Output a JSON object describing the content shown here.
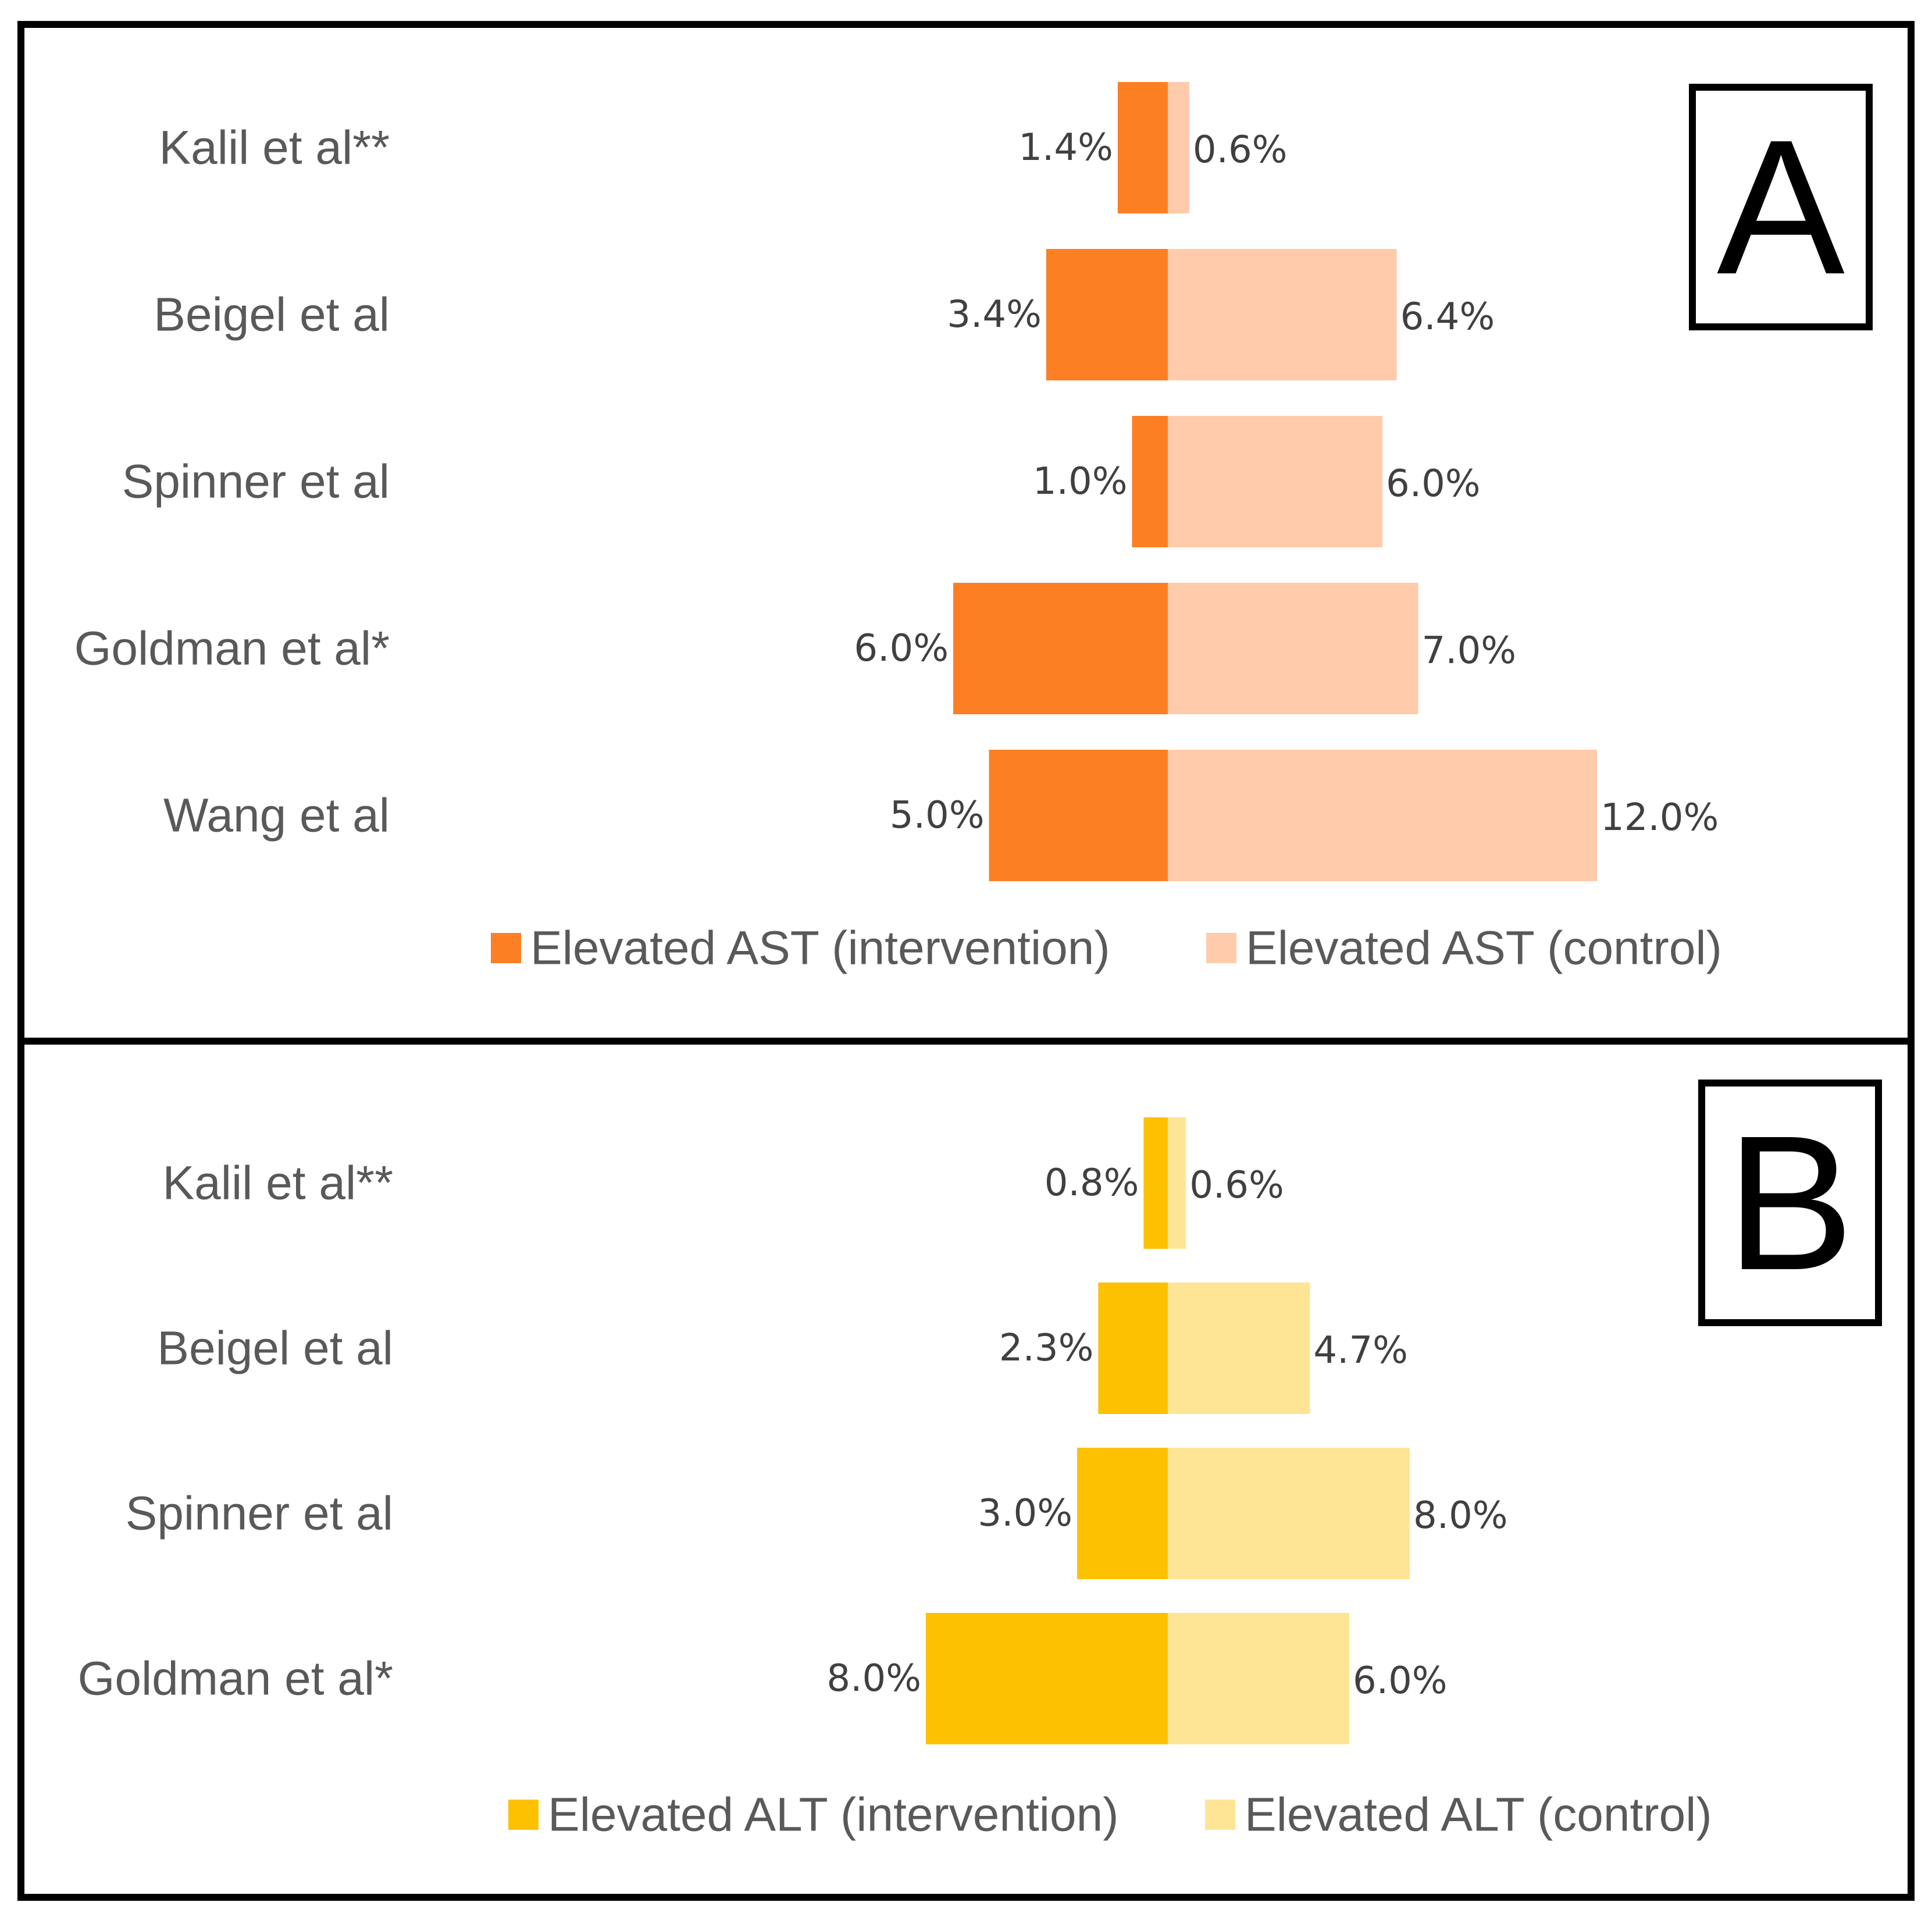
{
  "chart_data": [
    {
      "type": "bar",
      "orientation": "horizontal-diverging",
      "panel_label": "A",
      "categories": [
        "Kalil et al**",
        "Beigel et al",
        "Spinner et al",
        "Goldman et al*",
        "Wang et al"
      ],
      "series": [
        {
          "name": "Elevated AST (intervention)",
          "color": "#FD7F24",
          "side": "left",
          "values": [
            1.4,
            3.4,
            1.0,
            6.0,
            5.0
          ],
          "labels": [
            "1.4%",
            "3.4%",
            "1.0%",
            "6.0%",
            "5.0%"
          ]
        },
        {
          "name": "Elevated AST (control)",
          "color": "#FFCBAA",
          "side": "right",
          "values": [
            0.6,
            6.4,
            6.0,
            7.0,
            12.0
          ],
          "labels": [
            "0.6%",
            "6.4%",
            "6.0%",
            "7.0%",
            "12.0%"
          ]
        }
      ],
      "unit": "%",
      "legend_position": "bottom"
    },
    {
      "type": "bar",
      "orientation": "horizontal-diverging",
      "panel_label": "B",
      "categories": [
        "Kalil et al**",
        "Beigel et al",
        "Spinner et al",
        "Goldman et al*"
      ],
      "series": [
        {
          "name": "Elevated ALT (intervention)",
          "color": "#FDC102",
          "side": "left",
          "values": [
            0.8,
            2.3,
            3.0,
            8.0
          ],
          "labels": [
            "0.8%",
            "2.3%",
            "3.0%",
            "8.0%"
          ]
        },
        {
          "name": "Elevated ALT (control)",
          "color": "#FEE596",
          "side": "right",
          "values": [
            0.6,
            4.7,
            8.0,
            6.0
          ],
          "labels": [
            "0.6%",
            "4.7%",
            "8.0%",
            "6.0%"
          ]
        }
      ],
      "unit": "%",
      "legend_position": "bottom"
    }
  ]
}
